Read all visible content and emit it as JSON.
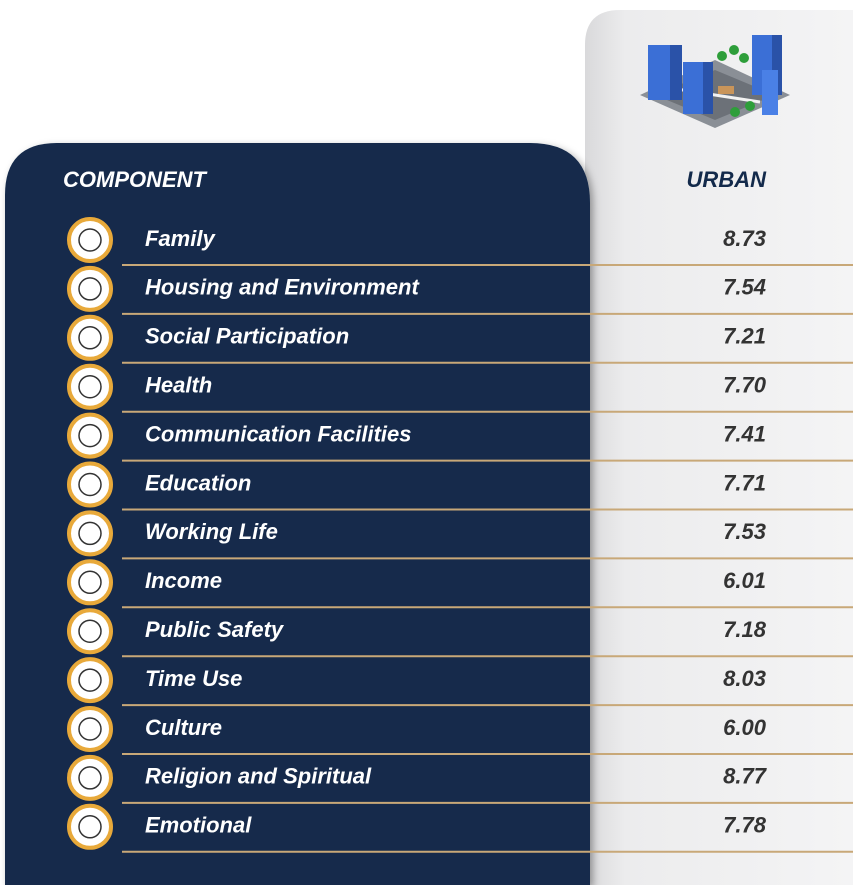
{
  "table": {
    "header": [
      "COMPONENT",
      "URBAN"
    ],
    "rows": [
      [
        "Family",
        "8.73"
      ],
      [
        "Housing and Environment",
        "7.54"
      ],
      [
        "Social Participation",
        "7.21"
      ],
      [
        "Health",
        "7.70"
      ],
      [
        "Communication Facilities",
        "7.41"
      ],
      [
        "Education",
        "7.71"
      ],
      [
        "Working Life",
        "7.53"
      ],
      [
        "Income",
        "6.01"
      ],
      [
        "Public Safety",
        "7.18"
      ],
      [
        "Time Use",
        "8.03"
      ],
      [
        "Culture",
        "6.00"
      ],
      [
        "Religion and Spiritual",
        "8.77"
      ],
      [
        "Emotional",
        "7.78"
      ]
    ]
  }
}
